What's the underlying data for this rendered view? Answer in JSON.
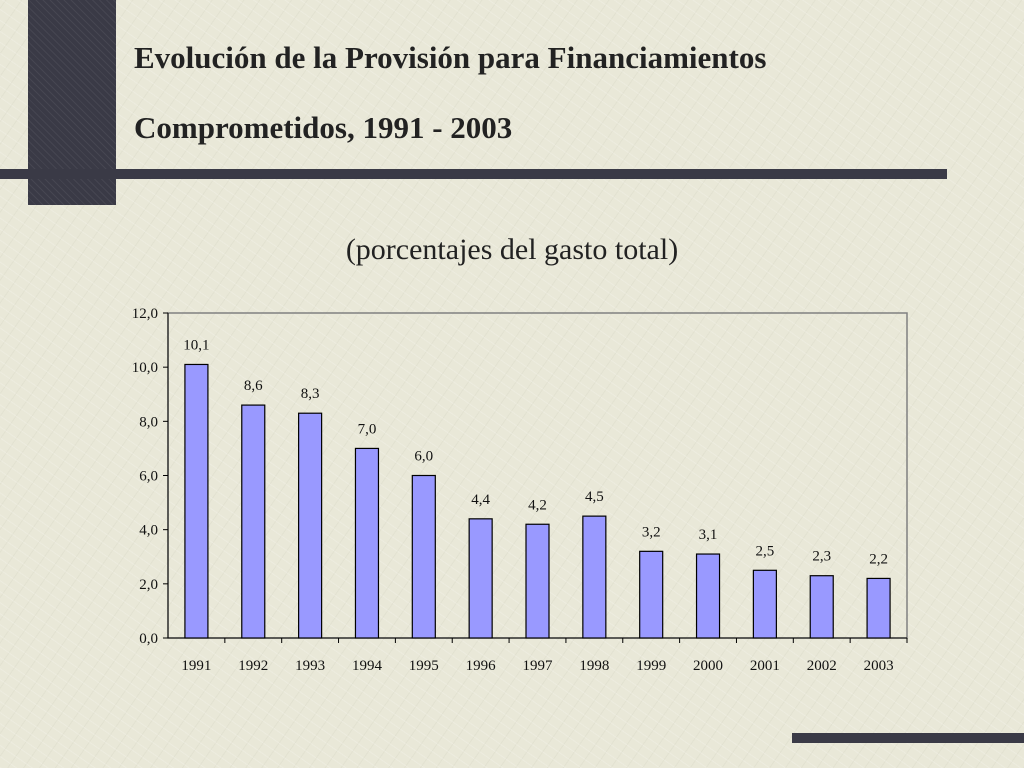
{
  "title_line1": "Evolución de la Provisión para Financiamientos",
  "title_line2": "Comprometidos, 1991 - 2003",
  "chart_data": {
    "type": "bar",
    "title": "Evolución de la Provisión para Financiamientos Comprometidos, 1991 - 2003",
    "subtitle": "(porcentajes del gasto total)",
    "categories": [
      "1991",
      "1992",
      "1993",
      "1994",
      "1995",
      "1996",
      "1997",
      "1998",
      "1999",
      "2000",
      "2001",
      "2002",
      "2003"
    ],
    "values": [
      10.1,
      8.6,
      8.3,
      7.0,
      6.0,
      4.4,
      4.2,
      4.5,
      3.2,
      3.1,
      2.5,
      2.3,
      2.2
    ],
    "value_labels": [
      "10,1",
      "8,6",
      "8,3",
      "7,0",
      "6,0",
      "4,4",
      "4,2",
      "4,5",
      "3,2",
      "3,1",
      "2,5",
      "2,3",
      "2,2"
    ],
    "ylim": [
      0,
      12
    ],
    "yticks": [
      "0,0",
      "2,0",
      "4,0",
      "6,0",
      "8,0",
      "10,0",
      "12,0"
    ],
    "xlabel": "",
    "ylabel": "",
    "grid": false,
    "colors": {
      "bar": "#9999ff",
      "bar_edge": "#000000"
    }
  }
}
